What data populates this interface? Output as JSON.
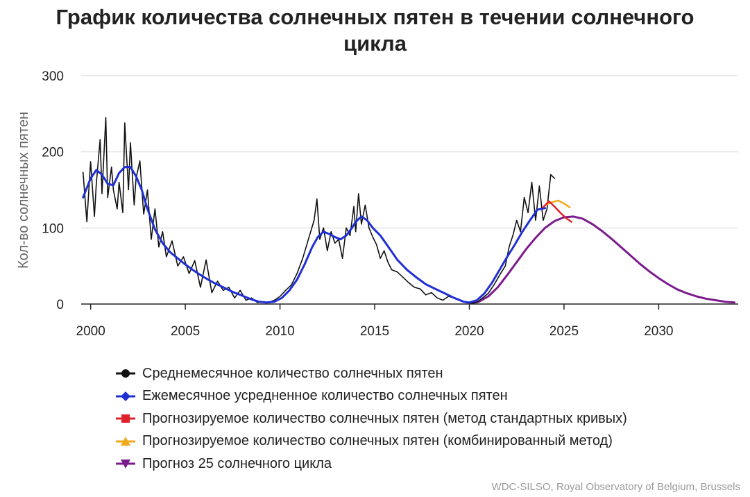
{
  "title_line1": "График количества солнечных пятен в течении солнечного",
  "title_line2": "цикла",
  "source": "WDC-SILSO, Royal Observatory of Belgium, Brussels",
  "colors": {
    "monthly": "#111111",
    "smoothed": "#1f2fd6",
    "predicted_standard": "#e0202a",
    "predicted_combined": "#f2a81d",
    "forecast_25": "#7b1a8c",
    "grid": "#e4e4e4",
    "axis": "#222222"
  },
  "legend": [
    {
      "label": "Среднемесячное количество солнечных пятен",
      "marker": "circle",
      "color": "#111111"
    },
    {
      "label": "Ежемесячное усредненное количество солнечных пятен",
      "marker": "diamond",
      "color": "#1f2fd6"
    },
    {
      "label": "Прогнозируемое количество солнечных пятен (метод стандартных кривых)",
      "marker": "square",
      "color": "#e0202a"
    },
    {
      "label": "Прогнозируемое количество солнечных пятен (комбинированный метод)",
      "marker": "triangle-up",
      "color": "#f2a81d"
    },
    {
      "label": "Прогноз 25 солнечного цикла",
      "marker": "triangle-down",
      "color": "#7b1a8c"
    }
  ],
  "chart_data": {
    "type": "line",
    "title": "График количества солнечных пятен в течении солнечного цикла",
    "xlabel": "",
    "ylabel": "Кол-во солнечных пятен",
    "xlim": [
      1999.5,
      2034.2
    ],
    "ylim": [
      0,
      300
    ],
    "xticks": [
      2000,
      2005,
      2010,
      2015,
      2020,
      2025,
      2030
    ],
    "yticks": [
      0,
      100,
      200,
      300
    ],
    "grid": "horizontal",
    "legend_position": "bottom",
    "series": [
      {
        "name": "Среднемесячное количество солнечных пятен",
        "style": "line",
        "x": [
          1999.6,
          1999.8,
          2000.0,
          2000.2,
          2000.3,
          2000.5,
          2000.6,
          2000.8,
          2000.9,
          2001.1,
          2001.2,
          2001.4,
          2001.5,
          2001.7,
          2001.8,
          2002.0,
          2002.1,
          2002.3,
          2002.4,
          2002.6,
          2002.8,
          2003.0,
          2003.2,
          2003.4,
          2003.6,
          2003.8,
          2004.0,
          2004.3,
          2004.6,
          2004.9,
          2005.2,
          2005.5,
          2005.8,
          2006.1,
          2006.4,
          2006.7,
          2007.0,
          2007.3,
          2007.6,
          2007.9,
          2008.2,
          2008.5,
          2008.8,
          2009.1,
          2009.4,
          2009.7,
          2010.0,
          2010.3,
          2010.6,
          2010.9,
          2011.2,
          2011.5,
          2011.8,
          2011.95,
          2012.1,
          2012.3,
          2012.5,
          2012.7,
          2012.9,
          2013.1,
          2013.3,
          2013.5,
          2013.7,
          2013.9,
          2014.0,
          2014.15,
          2014.3,
          2014.5,
          2014.7,
          2014.9,
          2015.1,
          2015.3,
          2015.5,
          2015.7,
          2015.9,
          2016.2,
          2016.5,
          2016.8,
          2017.1,
          2017.4,
          2017.7,
          2018.0,
          2018.3,
          2018.6,
          2018.9,
          2019.2,
          2019.5,
          2019.8,
          2020.1,
          2020.4,
          2020.7,
          2021.0,
          2021.3,
          2021.6,
          2021.9,
          2022.1,
          2022.3,
          2022.5,
          2022.7,
          2022.9,
          2023.1,
          2023.3,
          2023.5,
          2023.7,
          2023.9,
          2024.1,
          2024.3,
          2024.5
        ],
        "y": [
          173,
          108,
          187,
          115,
          158,
          216,
          145,
          245,
          140,
          180,
          150,
          125,
          160,
          120,
          238,
          150,
          212,
          130,
          165,
          188,
          118,
          150,
          85,
          125,
          75,
          95,
          62,
          83,
          50,
          62,
          40,
          57,
          22,
          58,
          15,
          30,
          18,
          22,
          8,
          18,
          5,
          8,
          2,
          3,
          2,
          5,
          10,
          18,
          25,
          40,
          60,
          85,
          110,
          138,
          85,
          100,
          70,
          95,
          80,
          85,
          60,
          100,
          90,
          128,
          95,
          145,
          105,
          130,
          100,
          88,
          78,
          60,
          70,
          55,
          45,
          42,
          35,
          28,
          22,
          20,
          12,
          15,
          8,
          5,
          10,
          8,
          5,
          2,
          1,
          2,
          8,
          14,
          25,
          38,
          50,
          75,
          90,
          110,
          95,
          140,
          120,
          160,
          110,
          155,
          110,
          125,
          170,
          165
        ]
      },
      {
        "name": "Ежемесячное усредненное количество солнечных пятен",
        "style": "line",
        "x": [
          1999.6,
          2000.0,
          2000.3,
          2000.6,
          2000.9,
          2001.2,
          2001.5,
          2001.8,
          2002.1,
          2002.4,
          2002.7,
          2003.0,
          2003.4,
          2003.8,
          2004.2,
          2004.6,
          2005.0,
          2005.5,
          2006.0,
          2006.5,
          2007.0,
          2007.5,
          2008.0,
          2008.5,
          2008.9,
          2009.3,
          2009.7,
          2010.1,
          2010.5,
          2010.9,
          2011.3,
          2011.7,
          2012.0,
          2012.3,
          2012.6,
          2012.9,
          2013.2,
          2013.5,
          2013.8,
          2014.0,
          2014.3,
          2014.6,
          2014.9,
          2015.3,
          2015.7,
          2016.2,
          2016.7,
          2017.2,
          2017.7,
          2018.2,
          2018.7,
          2019.2,
          2019.7,
          2020.0,
          2020.4,
          2020.8,
          2021.2,
          2021.6,
          2022.0,
          2022.4,
          2022.8,
          2023.2,
          2023.6,
          2024.0
        ],
        "y": [
          140,
          165,
          176,
          170,
          158,
          156,
          172,
          180,
          180,
          168,
          150,
          125,
          98,
          80,
          68,
          60,
          52,
          43,
          35,
          28,
          22,
          16,
          11,
          6,
          3,
          2,
          3,
          8,
          18,
          32,
          52,
          75,
          88,
          95,
          92,
          88,
          85,
          90,
          100,
          108,
          115,
          110,
          100,
          90,
          76,
          58,
          45,
          35,
          26,
          20,
          14,
          8,
          3,
          2,
          5,
          14,
          28,
          45,
          62,
          78,
          95,
          110,
          124,
          126
        ]
      },
      {
        "name": "Прогнозируемое количество солнечных пятен (метод стандартных кривых)",
        "style": "line",
        "x": [
          2023.9,
          2024.2,
          2024.5,
          2024.8,
          2025.1,
          2025.4
        ],
        "y": [
          127,
          135,
          128,
          120,
          113,
          108
        ]
      },
      {
        "name": "Прогнозируемое количество солнечных пятен (комбинированный метод)",
        "style": "line",
        "x": [
          2024.1,
          2024.4,
          2024.7,
          2025.0,
          2025.3
        ],
        "y": [
          131,
          134,
          136,
          132,
          127
        ]
      },
      {
        "name": "Прогноз 25 солнечного цикла",
        "style": "line",
        "x": [
          2020.0,
          2020.5,
          2021.0,
          2021.5,
          2022.0,
          2022.5,
          2023.0,
          2023.5,
          2024.0,
          2024.5,
          2025.0,
          2025.5,
          2026.0,
          2026.5,
          2027.0,
          2027.5,
          2028.0,
          2028.5,
          2029.0,
          2029.5,
          2030.0,
          2030.5,
          2031.0,
          2031.5,
          2032.0,
          2032.5,
          2033.0,
          2033.5,
          2034.0
        ],
        "y": [
          1,
          3,
          10,
          22,
          38,
          55,
          72,
          87,
          100,
          109,
          114,
          115,
          112,
          105,
          96,
          86,
          75,
          64,
          53,
          43,
          34,
          26,
          19,
          14,
          10,
          7,
          5,
          3,
          2
        ]
      }
    ]
  }
}
